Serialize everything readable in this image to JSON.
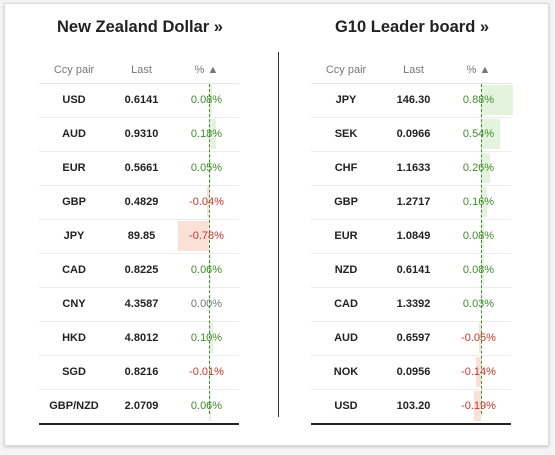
{
  "left": {
    "title": "New Zealand Dollar »",
    "headers": {
      "pair": "Ccy pair",
      "last": "Last",
      "pct": "% ▲"
    },
    "rows": [
      {
        "pair": "USD",
        "last": "0.6141",
        "pct": "0.08%",
        "value": 0.08
      },
      {
        "pair": "AUD",
        "last": "0.9310",
        "pct": "0.18%",
        "value": 0.18
      },
      {
        "pair": "EUR",
        "last": "0.5661",
        "pct": "0.05%",
        "value": 0.05
      },
      {
        "pair": "GBP",
        "last": "0.4829",
        "pct": "-0.04%",
        "value": -0.04
      },
      {
        "pair": "JPY",
        "last": "89.85",
        "pct": "-0.78%",
        "value": -0.78
      },
      {
        "pair": "CAD",
        "last": "0.8225",
        "pct": "0.06%",
        "value": 0.06
      },
      {
        "pair": "CNY",
        "last": "4.3587",
        "pct": "0.00%",
        "value": 0.0
      },
      {
        "pair": "HKD",
        "last": "4.8012",
        "pct": "0.10%",
        "value": 0.1
      },
      {
        "pair": "SGD",
        "last": "0.8216",
        "pct": "-0.01%",
        "value": -0.01
      },
      {
        "pair": "GBP/NZD",
        "last": "2.0709",
        "pct": "0.06%",
        "value": 0.06
      }
    ]
  },
  "right": {
    "title": "G10 Leader board »",
    "headers": {
      "pair": "Ccy pair",
      "last": "Last",
      "pct": "% ▲"
    },
    "rows": [
      {
        "pair": "JPY",
        "last": "146.30",
        "pct": "0.88%",
        "value": 0.88
      },
      {
        "pair": "SEK",
        "last": "0.0966",
        "pct": "0.54%",
        "value": 0.54
      },
      {
        "pair": "CHF",
        "last": "1.1633",
        "pct": "0.26%",
        "value": 0.26
      },
      {
        "pair": "GBP",
        "last": "1.2717",
        "pct": "0.16%",
        "value": 0.16
      },
      {
        "pair": "EUR",
        "last": "1.0849",
        "pct": "0.08%",
        "value": 0.08
      },
      {
        "pair": "NZD",
        "last": "0.6141",
        "pct": "0.08%",
        "value": 0.08
      },
      {
        "pair": "CAD",
        "last": "1.3392",
        "pct": "0.03%",
        "value": 0.03
      },
      {
        "pair": "AUD",
        "last": "0.6597",
        "pct": "-0.05%",
        "value": -0.05
      },
      {
        "pair": "NOK",
        "last": "0.0956",
        "pct": "-0.14%",
        "value": -0.14
      },
      {
        "pair": "USD",
        "last": "103.20",
        "pct": "-0.19%",
        "value": -0.19
      }
    ]
  },
  "colors": {
    "positive": "#3e8e2a",
    "negative": "#c0392b",
    "positive_bar": "#e3f3dd",
    "negative_bar": "#fbe0d8"
  }
}
